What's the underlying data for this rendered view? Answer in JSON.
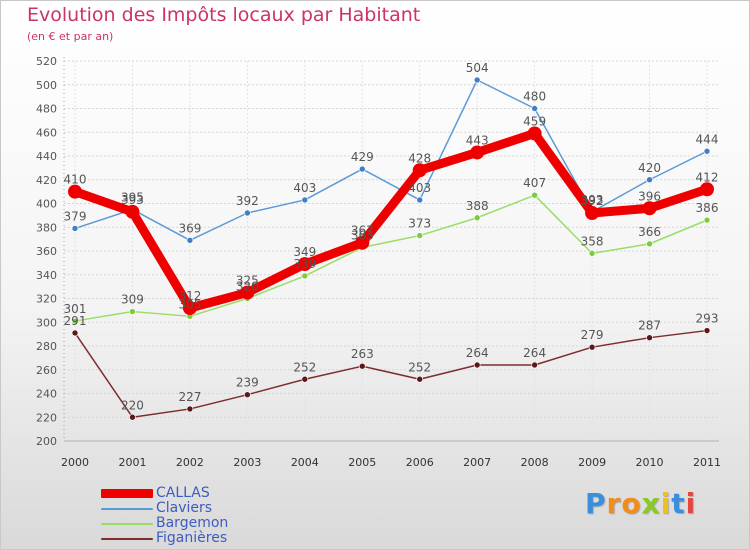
{
  "chart_data": {
    "type": "line",
    "title": "Evolution des Impôts locaux par Habitant",
    "subtitle": "(en € et par an)",
    "xlabel": "",
    "ylabel": "",
    "ylim": [
      200,
      520
    ],
    "ytick_step": 20,
    "y_ticks": [
      "200",
      "220",
      "240",
      "260",
      "280",
      "300",
      "320",
      "340",
      "360",
      "380",
      "400",
      "420",
      "440",
      "460",
      "480",
      "500",
      "520"
    ],
    "grid": true,
    "categories": [
      "2000",
      "2001",
      "2002",
      "2003",
      "2004",
      "2005",
      "2006",
      "2007",
      "2008",
      "2009",
      "2010",
      "2011"
    ],
    "series": [
      {
        "name": "Claviers",
        "color": "#5b9bd5",
        "marker_color": "#3f7fc8",
        "values": [
          379,
          395,
          369,
          392,
          403,
          429,
          403,
          504,
          480,
          393,
          420,
          444
        ]
      },
      {
        "name": "Bargemon",
        "color": "#99dd66",
        "marker_color": "#7acc3e",
        "values": [
          301,
          309,
          305,
          320,
          339,
          363,
          373,
          388,
          407,
          358,
          366,
          386
        ]
      },
      {
        "name": "Figanières",
        "color": "#7d2d2d",
        "marker_color": "#5e1717",
        "values": [
          291,
          220,
          227,
          239,
          252,
          263,
          252,
          264,
          264,
          279,
          287,
          293
        ]
      },
      {
        "name": "CALLAS",
        "color": "#ee0000",
        "marker_color": "#ee0000",
        "thick": true,
        "values": [
          410,
          393,
          312,
          325,
          349,
          367,
          428,
          443,
          459,
          392,
          396,
          412
        ]
      }
    ],
    "legend": {
      "placement": "bottom-left",
      "order": [
        "CALLAS",
        "Claviers",
        "Bargemon",
        "Figanières"
      ]
    }
  },
  "brand": {
    "letters": [
      "P",
      "r",
      "o",
      "x",
      "i",
      "t",
      "i"
    ],
    "colors": [
      "#3a8edb",
      "#f28c1a",
      "#f28c1a",
      "#8ac926",
      "#f2c01a",
      "#3a8edb",
      "#e2483d"
    ]
  }
}
